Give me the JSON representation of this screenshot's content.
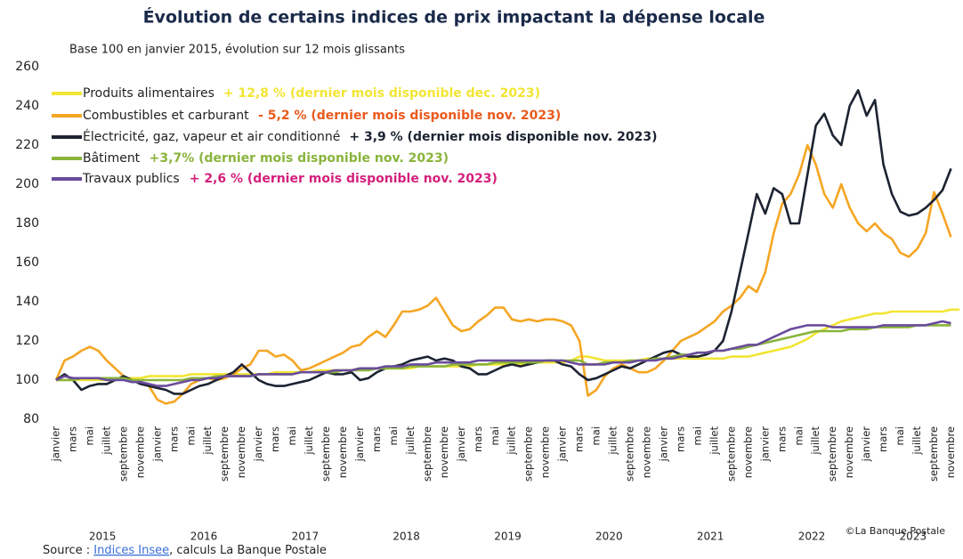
{
  "chart_data": {
    "type": "line",
    "title": "Évolution de certains indices de prix impactant la dépense locale",
    "subtitle": "Base 100 en janvier 2015, évolution sur 12 mois glissants",
    "categories": [
      "janvier",
      null,
      "mars",
      null,
      "mai",
      null,
      "juillet",
      null,
      "septembre",
      null,
      "novembre",
      null,
      "janvier",
      null,
      "mars",
      null,
      "mai",
      null,
      "juillet",
      null,
      "septembre",
      null,
      "novembre",
      null,
      "janvier",
      null,
      "mars",
      null,
      "mai",
      null,
      "juillet",
      null,
      "septembre",
      null,
      "novembre",
      null,
      "janvier",
      null,
      "mars",
      null,
      "mai",
      null,
      "juillet",
      null,
      "septembre",
      null,
      "novembre",
      null,
      "janvier",
      null,
      "mars",
      null,
      "mai",
      null,
      "juillet",
      null,
      "septembre",
      null,
      "novembre",
      null,
      "janvier",
      null,
      "mars",
      null,
      "mai",
      null,
      "juillet",
      null,
      "septembre",
      null,
      "novembre",
      null,
      "janvier",
      null,
      "mars",
      null,
      "mai",
      null,
      "juillet",
      null,
      "septembre",
      null,
      "novembre",
      null,
      "janvier",
      null,
      "mars",
      null,
      "mai",
      null,
      "juillet",
      null,
      "septembre",
      null,
      "novembre",
      null,
      "janvier",
      null,
      "mars",
      null,
      "mai",
      null,
      "juillet",
      null,
      "septembre",
      null,
      "novembre",
      null
    ],
    "years": [
      "2015",
      "2016",
      "2017",
      "2018",
      "2019",
      "2020",
      "2021",
      "2022",
      "2023"
    ],
    "ylim": [
      80,
      260
    ],
    "yticks": [
      80,
      100,
      120,
      140,
      160,
      180,
      200,
      220,
      240,
      260
    ],
    "grid": false,
    "series": [
      {
        "name": "Produits alimentaires",
        "color": "#f2e534",
        "legend_note": "+ 12,8 % (dernier mois disponible dec. 2023)",
        "note_color": "#f2e534",
        "values": [
          100,
          100,
          100,
          100,
          100,
          100,
          100,
          100,
          101,
          101,
          101,
          102,
          102,
          102,
          102,
          102,
          103,
          103,
          103,
          103,
          103,
          103,
          103,
          103,
          103,
          103,
          104,
          104,
          104,
          104,
          104,
          105,
          105,
          105,
          105,
          105,
          106,
          106,
          106,
          106,
          106,
          106,
          106,
          107,
          107,
          107,
          107,
          107,
          107,
          107,
          108,
          108,
          108,
          108,
          108,
          108,
          108,
          109,
          109,
          109,
          109,
          110,
          112,
          112,
          111,
          110,
          110,
          110,
          110,
          110,
          111,
          111,
          111,
          111,
          111,
          111,
          111,
          111,
          111,
          111,
          112,
          112,
          112,
          113,
          114,
          115,
          116,
          117,
          119,
          121,
          124,
          126,
          128,
          130,
          131,
          132,
          133,
          134,
          134,
          135,
          135,
          135,
          135,
          135,
          135,
          135,
          136,
          136
        ]
      },
      {
        "name": "Combustibles et carburant",
        "color": "#f5a623",
        "legend_note": "- 5,2 % (dernier mois disponible nov. 2023)",
        "note_color": "#ea5a1e",
        "values": [
          100,
          110,
          112,
          115,
          117,
          115,
          110,
          106,
          102,
          100,
          99,
          97,
          90,
          88,
          89,
          93,
          98,
          100,
          101,
          100,
          101,
          103,
          106,
          108,
          115,
          115,
          112,
          113,
          110,
          105,
          106,
          108,
          110,
          112,
          114,
          117,
          118,
          122,
          125,
          122,
          128,
          135,
          135,
          136,
          138,
          142,
          135,
          128,
          125,
          126,
          130,
          133,
          137,
          137,
          131,
          130,
          131,
          130,
          131,
          131,
          130,
          128,
          120,
          92,
          95,
          102,
          106,
          108,
          106,
          104,
          104,
          106,
          110,
          115,
          120,
          122,
          124,
          127,
          130,
          135,
          138,
          142,
          148,
          145,
          155,
          175,
          190,
          195,
          205,
          220,
          210,
          195,
          188,
          200,
          188,
          180,
          176,
          180,
          175,
          172,
          165,
          163,
          167,
          175,
          196,
          185,
          173,
          null
        ]
      },
      {
        "name": "Électricité, gaz, vapeur et air conditionné",
        "color": "#1c2331",
        "legend_note": "+ 3,9 % (dernier mois disponible nov. 2023)",
        "note_color": "#1c2331",
        "values": [
          100,
          103,
          100,
          95,
          97,
          98,
          98,
          100,
          102,
          100,
          98,
          97,
          96,
          95,
          93,
          93,
          95,
          97,
          98,
          100,
          102,
          104,
          108,
          104,
          100,
          98,
          97,
          97,
          98,
          99,
          100,
          102,
          104,
          103,
          103,
          104,
          100,
          101,
          104,
          106,
          107,
          108,
          110,
          111,
          112,
          110,
          111,
          110,
          107,
          106,
          103,
          103,
          105,
          107,
          108,
          107,
          108,
          109,
          110,
          110,
          108,
          107,
          103,
          100,
          101,
          103,
          105,
          107,
          106,
          108,
          110,
          112,
          114,
          115,
          113,
          112,
          112,
          113,
          115,
          120,
          135,
          155,
          175,
          195,
          185,
          198,
          195,
          180,
          180,
          205,
          230,
          236,
          225,
          220,
          240,
          248,
          235,
          243,
          210,
          195,
          186,
          184,
          185,
          188,
          192,
          197,
          208,
          null
        ]
      },
      {
        "name": "Bâtiment",
        "color": "#8ab43c",
        "legend_note": "+3,7% (dernier mois disponible nov. 2023)",
        "note_color": "#8ab43c",
        "values": [
          100,
          100,
          100,
          101,
          101,
          101,
          101,
          101,
          101,
          100,
          100,
          100,
          100,
          100,
          100,
          100,
          101,
          101,
          101,
          102,
          102,
          102,
          102,
          102,
          103,
          103,
          103,
          103,
          103,
          104,
          104,
          104,
          104,
          104,
          105,
          105,
          105,
          105,
          106,
          106,
          106,
          106,
          107,
          107,
          107,
          107,
          107,
          108,
          108,
          108,
          108,
          108,
          109,
          109,
          109,
          109,
          109,
          109,
          110,
          110,
          110,
          110,
          110,
          108,
          108,
          109,
          109,
          109,
          110,
          110,
          110,
          111,
          111,
          112,
          113,
          113,
          114,
          114,
          115,
          115,
          116,
          116,
          117,
          118,
          119,
          120,
          121,
          122,
          123,
          124,
          125,
          125,
          125,
          125,
          126,
          126,
          126,
          127,
          127,
          127,
          127,
          127,
          128,
          128,
          128,
          128,
          128,
          null
        ]
      },
      {
        "name": "Travaux publics",
        "color": "#6a4c9c",
        "legend_note": "+ 2,6 % (dernier mois disponible nov. 2023)",
        "note_color": "#d4207c",
        "values": [
          100,
          102,
          101,
          101,
          101,
          101,
          100,
          100,
          100,
          99,
          99,
          98,
          97,
          97,
          98,
          99,
          100,
          100,
          101,
          101,
          102,
          102,
          102,
          102,
          103,
          103,
          103,
          103,
          103,
          104,
          104,
          104,
          104,
          105,
          105,
          105,
          106,
          106,
          106,
          107,
          107,
          107,
          108,
          108,
          108,
          109,
          109,
          109,
          109,
          109,
          110,
          110,
          110,
          110,
          110,
          110,
          110,
          110,
          110,
          110,
          110,
          109,
          108,
          108,
          108,
          108,
          109,
          109,
          109,
          110,
          110,
          110,
          111,
          111,
          112,
          113,
          114,
          114,
          115,
          115,
          116,
          117,
          118,
          118,
          120,
          122,
          124,
          126,
          127,
          128,
          128,
          128,
          127,
          127,
          127,
          127,
          127,
          127,
          128,
          128,
          128,
          128,
          128,
          128,
          129,
          130,
          129,
          null
        ]
      }
    ]
  },
  "source": {
    "prefix": "Source : ",
    "link": "Indices Insee",
    "suffix": ", calculs La Banque Postale"
  },
  "credit": "©La Banque Postale"
}
